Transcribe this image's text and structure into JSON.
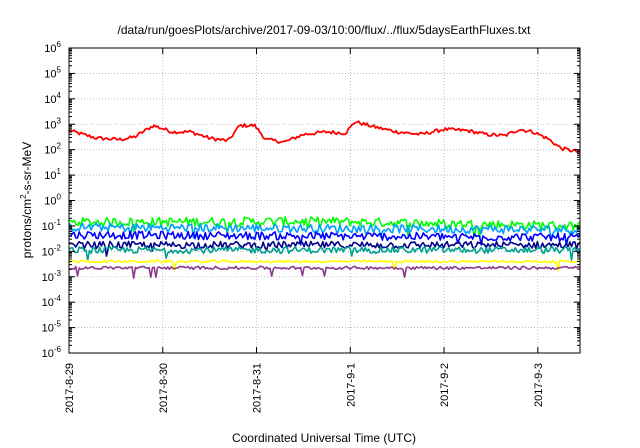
{
  "chart_data": {
    "type": "line",
    "title": "/data/run/goesPlots/archive/2017-09-03/10:00/flux/../flux/5daysEarthFluxes.txt",
    "xlabel": "Coordinated Universal Time (UTC)",
    "ylabel": "protons/cm2-s-sr-MeV",
    "ylabel_main": "protons/cm",
    "ylabel_sup": "2",
    "ylabel_rest": "-s-sr-MeV",
    "yscale": "log",
    "ylim_exponents": [
      -6,
      6
    ],
    "y_ticks": [
      {
        "base": "10",
        "exp": "6"
      },
      {
        "base": "10",
        "exp": "5"
      },
      {
        "base": "10",
        "exp": "4"
      },
      {
        "base": "10",
        "exp": "3"
      },
      {
        "base": "10",
        "exp": "2"
      },
      {
        "base": "10",
        "exp": "1"
      },
      {
        "base": "10",
        "exp": "0"
      },
      {
        "base": "10",
        "exp": "-1"
      },
      {
        "base": "10",
        "exp": "-2"
      },
      {
        "base": "10",
        "exp": "-3"
      },
      {
        "base": "10",
        "exp": "-4"
      },
      {
        "base": "10",
        "exp": "-5"
      },
      {
        "base": "10",
        "exp": "-6"
      }
    ],
    "x_tick_labels": [
      "2017-8-29",
      "2017-8-30",
      "2017-8-31",
      "2017-9-1",
      "2017-9-2",
      "2017-9-3"
    ],
    "x_range_days": [
      0,
      5.45
    ],
    "grid": true,
    "series": [
      {
        "color": "#ff0000",
        "log_anchors": [
          [
            0,
            2.75
          ],
          [
            0.15,
            2.6
          ],
          [
            0.3,
            2.45
          ],
          [
            0.55,
            2.4
          ],
          [
            0.7,
            2.5
          ],
          [
            0.9,
            2.95
          ],
          [
            1.1,
            2.7
          ],
          [
            1.3,
            2.7
          ],
          [
            1.5,
            2.45
          ],
          [
            1.7,
            2.35
          ],
          [
            1.82,
            2.95
          ],
          [
            1.98,
            2.95
          ],
          [
            2.1,
            2.4
          ],
          [
            2.3,
            2.3
          ],
          [
            2.5,
            2.6
          ],
          [
            2.75,
            2.7
          ],
          [
            2.95,
            2.65
          ],
          [
            3.05,
            3.1
          ],
          [
            3.25,
            2.9
          ],
          [
            3.5,
            2.7
          ],
          [
            3.75,
            2.6
          ],
          [
            4.0,
            2.8
          ],
          [
            4.25,
            2.75
          ],
          [
            4.45,
            2.6
          ],
          [
            4.65,
            2.55
          ],
          [
            4.8,
            2.8
          ],
          [
            4.95,
            2.7
          ],
          [
            5.1,
            2.45
          ],
          [
            5.25,
            2.05
          ],
          [
            5.45,
            1.9
          ]
        ],
        "noise": 0.07
      },
      {
        "color": "#00ff00",
        "log_anchors": [
          [
            0,
            -0.85
          ],
          [
            2.7,
            -0.82
          ],
          [
            5.45,
            -1.0
          ]
        ],
        "noise": 0.18
      },
      {
        "color": "#00a0ff",
        "log_anchors": [
          [
            0,
            -1.05
          ],
          [
            5.45,
            -1.15
          ]
        ],
        "noise": 0.17
      },
      {
        "color": "#0000ff",
        "log_anchors": [
          [
            0,
            -1.35
          ],
          [
            5.45,
            -1.45
          ]
        ],
        "noise": 0.16
      },
      {
        "color": "#00008b",
        "log_anchors": [
          [
            0,
            -1.75
          ],
          [
            5.45,
            -1.75
          ]
        ],
        "noise": 0.14
      },
      {
        "color": "#00a090",
        "log_anchors": [
          [
            0,
            -1.95
          ],
          [
            5.45,
            -1.95
          ]
        ],
        "noise": 0.13
      },
      {
        "color": "#ffff00",
        "log_anchors": [
          [
            0,
            -2.4
          ],
          [
            5.45,
            -2.4
          ]
        ],
        "noise": 0.05
      },
      {
        "color": "#8b3a8b",
        "log_anchors": [
          [
            0,
            -2.65
          ],
          [
            5.45,
            -2.65
          ]
        ],
        "noise": 0.06
      }
    ]
  }
}
